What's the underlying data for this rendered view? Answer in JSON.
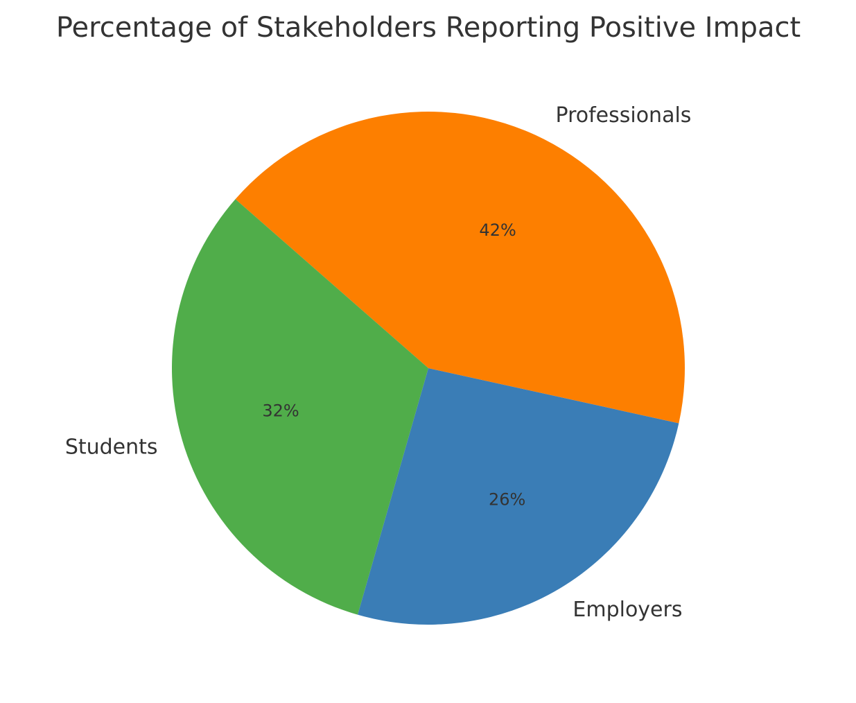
{
  "chart_data": {
    "type": "pie",
    "title": "Percentage of Stakeholders Reporting Positive Impact",
    "categories": [
      "Employers",
      "Professionals",
      "Students"
    ],
    "values": [
      26,
      42,
      32
    ],
    "value_labels": [
      "26%",
      "42%",
      "32%"
    ],
    "colors": [
      "#3a7db6",
      "#fd7f00",
      "#50ad4a"
    ],
    "start_angle_deg": 254,
    "direction": "counterclockwise",
    "legend": "none"
  }
}
